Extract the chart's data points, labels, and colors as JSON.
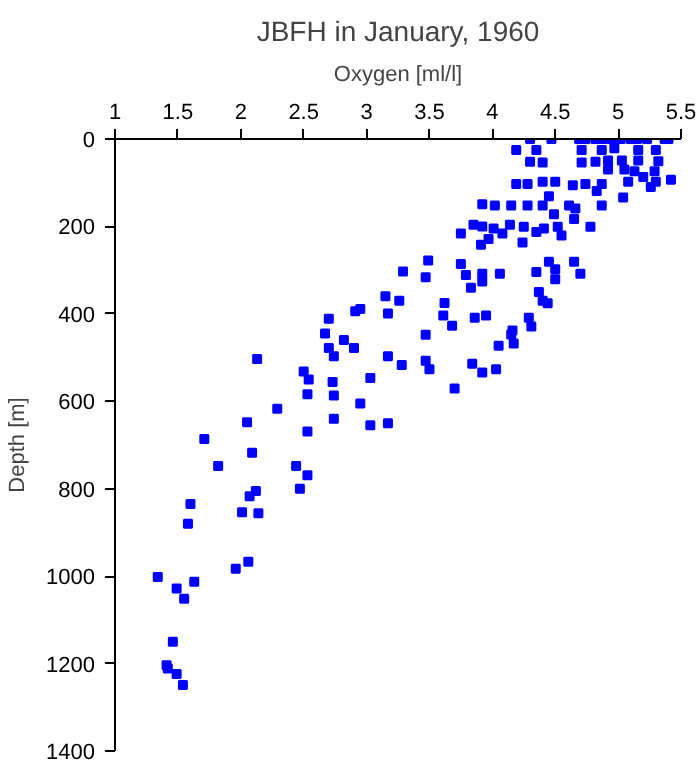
{
  "chart_data": {
    "type": "scatter",
    "title": "JBFH in January, 1960",
    "xlabel": "Oxygen [ml/l]",
    "ylabel": "Depth [m]",
    "xlim": [
      1,
      5.5
    ],
    "xticks": [
      1,
      1.5,
      2,
      2.5,
      3,
      3.5,
      4,
      4.5,
      5,
      5.5
    ],
    "ylim": [
      1400,
      0
    ],
    "yticks": [
      0,
      200,
      400,
      600,
      800,
      1000,
      1200,
      1400
    ],
    "grid": false,
    "marker": "square",
    "series": [
      {
        "color": "#0000ff",
        "x": [
          4.3,
          4.47,
          4.69,
          4.74,
          4.82,
          4.88,
          4.95,
          5.02,
          5.1,
          5.15,
          5.23,
          5.37,
          5.4,
          4.19,
          4.35,
          4.71,
          4.87,
          4.97,
          5.16,
          5.3,
          4.3,
          4.4,
          4.71,
          4.82,
          4.92,
          5.03,
          5.16,
          5.32,
          4.92,
          5.05,
          5.13,
          5.29,
          4.19,
          4.28,
          4.4,
          4.5,
          4.64,
          4.74,
          4.87,
          5.08,
          5.2,
          5.3,
          5.42,
          4.45,
          4.83,
          5.04,
          5.26,
          3.92,
          4.02,
          4.15,
          4.28,
          4.4,
          4.61,
          4.66,
          4.87,
          4.49,
          4.65,
          3.85,
          3.92,
          4.01,
          4.14,
          4.25,
          4.41,
          4.52,
          4.78,
          3.75,
          4.08,
          4.35,
          3.97,
          3.91,
          4.24,
          4.55,
          3.49,
          3.75,
          4.45,
          4.65,
          4.5,
          3.29,
          3.47,
          3.79,
          3.92,
          4.06,
          4.35,
          4.5,
          4.7,
          3.15,
          3.26,
          3.62,
          3.83,
          3.92,
          4.37,
          4.4,
          4.44,
          2.7,
          2.91,
          2.95,
          3.17,
          3.61,
          3.68,
          3.86,
          3.95,
          4.29,
          4.31,
          4.16,
          4.15,
          2.67,
          2.82,
          2.9,
          2.7,
          3.47,
          4.05,
          4.17,
          2.74,
          3.17,
          3.28,
          3.47,
          3.5,
          3.84,
          3.92,
          4.03,
          2.5,
          2.54,
          2.73,
          3.03,
          3.7,
          2.53,
          2.74,
          2.95,
          2.29,
          2.74,
          3.03,
          3.17,
          2.53,
          2.44,
          2.53,
          2.47,
          2.13,
          2.05,
          1.71,
          2.09,
          1.82,
          2.07,
          2.12,
          1.6,
          2.01,
          2.14,
          1.58,
          1.34,
          1.49,
          1.55,
          1.63,
          1.96,
          2.06,
          1.46,
          1.41,
          1.42,
          1.49,
          1.54
        ],
        "values": [
          0,
          0,
          0,
          0,
          0,
          0,
          0,
          0,
          0,
          0,
          0,
          0,
          0,
          25,
          25,
          25,
          25,
          21,
          25,
          25,
          52,
          54,
          54,
          52,
          49,
          49,
          49,
          51,
          70,
          70,
          74,
          74,
          103,
          103,
          98,
          98,
          106,
          103,
          103,
          98,
          87,
          98,
          93,
          131,
          119,
          134,
          110,
          149,
          152,
          152,
          152,
          152,
          152,
          159,
          152,
          172,
          183,
          196,
          200,
          205,
          196,
          201,
          205,
          201,
          201,
          216,
          216,
          213,
          229,
          242,
          237,
          221,
          278,
          286,
          281,
          281,
          298,
          303,
          316,
          311,
          308,
          308,
          304,
          321,
          308,
          360,
          370,
          375,
          340,
          326,
          350,
          370,
          376,
          411,
          394,
          389,
          399,
          404,
          427,
          409,
          404,
          409,
          429,
          438,
          447,
          445,
          460,
          478,
          478,
          448,
          473,
          468,
          497,
          497,
          517,
          507,
          527,
          514,
          534,
          527,
          532,
          550,
          556,
          547,
          571,
          584,
          587,
          605,
          617,
          640,
          655,
          650,
          669,
          748,
          769,
          800,
          503,
          648,
          686,
          718,
          748,
          817,
          805,
          835,
          854,
          856,
          880,
          1002,
          1028,
          1052,
          1013,
          983,
          967,
          1150,
          1204,
          1211,
          1224,
          1249
        ]
      }
    ]
  }
}
